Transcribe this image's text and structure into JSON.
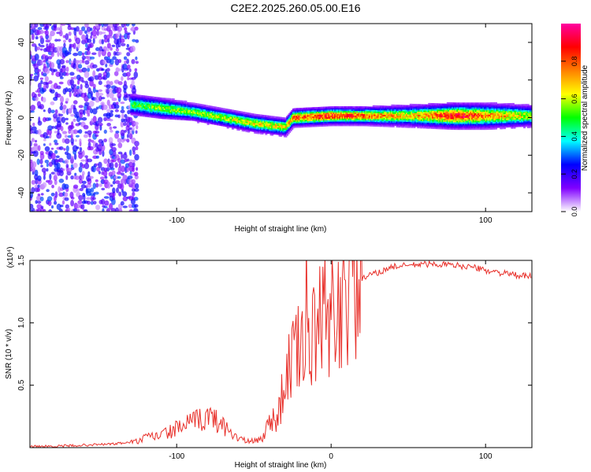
{
  "title": "C2E2.2025.260.05.00.E16",
  "chart_data": [
    {
      "type": "heatmap",
      "name": "spectrogram",
      "xlabel": "Height of straight line (km)",
      "ylabel": "Frequency (Hz)",
      "xlim": [
        -195,
        130
      ],
      "ylim": [
        -50,
        50
      ],
      "xticks": [
        -100,
        100
      ],
      "yticks": [
        -40,
        -20,
        0,
        20,
        40
      ],
      "colorbar": {
        "label": "Normalized spectral amplitude",
        "range": [
          0,
          1
        ],
        "ticks": [
          0.0,
          0.2,
          0.4,
          0.6,
          0.8
        ],
        "stops": [
          "#ffffff",
          "#8000ff",
          "#0000ff",
          "#00ffff",
          "#00ff00",
          "#ffff00",
          "#ff8000",
          "#ff0000",
          "#ff00a0"
        ]
      },
      "noise_region": {
        "x_range": [
          -195,
          -125
        ],
        "freq_range": [
          -50,
          50
        ],
        "amplitude": 0.15
      },
      "ridge": [
        {
          "x": -130,
          "freq": 7,
          "amp": 0.45,
          "width": 6
        },
        {
          "x": -110,
          "freq": 5,
          "amp": 0.5,
          "width": 6
        },
        {
          "x": -90,
          "freq": 3,
          "amp": 0.5,
          "width": 5
        },
        {
          "x": -70,
          "freq": 0,
          "amp": 0.55,
          "width": 5
        },
        {
          "x": -50,
          "freq": -3,
          "amp": 0.6,
          "width": 5
        },
        {
          "x": -30,
          "freq": -5,
          "amp": 0.6,
          "width": 5
        },
        {
          "x": -25,
          "freq": 0,
          "amp": 0.75,
          "width": 5
        },
        {
          "x": 0,
          "freq": 1,
          "amp": 0.8,
          "width": 5
        },
        {
          "x": 20,
          "freq": 1,
          "amp": 0.75,
          "width": 5
        },
        {
          "x": 50,
          "freq": 1,
          "amp": 0.6,
          "width": 6
        },
        {
          "x": 80,
          "freq": 1,
          "amp": 0.85,
          "width": 7
        },
        {
          "x": 100,
          "freq": 1,
          "amp": 0.7,
          "width": 7
        },
        {
          "x": 130,
          "freq": 1,
          "amp": 0.55,
          "width": 6
        }
      ]
    },
    {
      "type": "line",
      "name": "snr",
      "xlabel": "Height of straight line (km)",
      "ylabel": "SNR (10 * v/v)",
      "y_scale_label": "(x10⁴)",
      "xlim": [
        -195,
        130
      ],
      "ylim": [
        0,
        1.5
      ],
      "xticks": [
        -100,
        0,
        100
      ],
      "yticks": [
        0.5,
        1.0,
        1.5
      ],
      "color": "#e8302a",
      "series": [
        {
          "name": "SNR",
          "x": [
            -195,
            -180,
            -160,
            -140,
            -125,
            -120,
            -110,
            -100,
            -95,
            -90,
            -85,
            -80,
            -75,
            -70,
            -65,
            -60,
            -55,
            -50,
            -45,
            -40,
            -35,
            -32,
            -30,
            -28,
            -26,
            -24,
            -22,
            -20,
            -18,
            -16,
            -15,
            -14,
            -12,
            -10,
            -8,
            -6,
            -4,
            -2,
            0,
            2,
            4,
            6,
            8,
            10,
            12,
            14,
            16,
            18,
            20,
            25,
            30,
            40,
            50,
            60,
            70,
            80,
            90,
            100,
            110,
            120,
            130
          ],
          "values": [
            0.01,
            0.01,
            0.02,
            0.03,
            0.05,
            0.08,
            0.1,
            0.15,
            0.18,
            0.2,
            0.22,
            0.25,
            0.22,
            0.18,
            0.12,
            0.08,
            0.05,
            0.05,
            0.07,
            0.2,
            0.25,
            0.4,
            0.5,
            0.6,
            0.7,
            0.8,
            0.7,
            0.9,
            0.85,
            1.2,
            0.9,
            0.75,
            0.85,
            0.9,
            1.0,
            0.95,
            1.05,
            0.95,
            1.1,
            1.0,
            1.15,
            1.1,
            1.25,
            1.15,
            1.3,
            1.25,
            1.35,
            1.3,
            1.35,
            1.38,
            1.4,
            1.45,
            1.46,
            1.47,
            1.47,
            1.46,
            1.45,
            1.42,
            1.4,
            1.38,
            1.37
          ]
        }
      ]
    }
  ]
}
